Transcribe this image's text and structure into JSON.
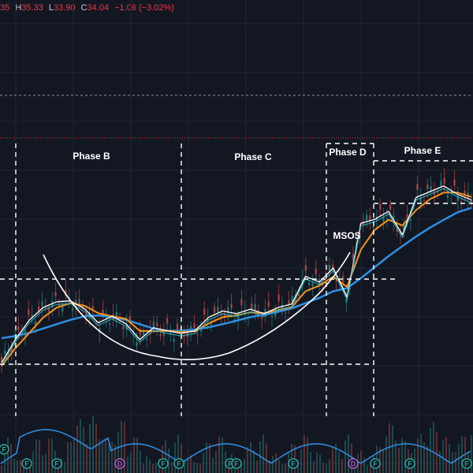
{
  "ohlc": {
    "open_partial": "35",
    "high_label": "H",
    "high": "35.33",
    "low_label": "L",
    "low": "33.90",
    "close_label": "C",
    "close": "34.04",
    "change": "−1.06 (−3.02%)"
  },
  "colors": {
    "background": "#131722",
    "grid": "#1f2433",
    "bull_candle": "#26a69a",
    "bear_candle": "#ef5350",
    "price_line": "#ffffff",
    "fast_ma": "#2bb3c0",
    "mid_ma": "#f7931a",
    "slow_ma": "#2f8fe6",
    "cup_curve": "#ffffff",
    "dashed_lines": "#ffffff",
    "top_dotted_line": "#e0e3eb",
    "red_dotted_line": "#e0303a",
    "volume_line": "#2f8fe6",
    "earnings_marker": "#26a69a",
    "dividend_marker": "#b05cc7"
  },
  "annotations": {
    "phase_b": "Phase B",
    "phase_c": "Phase C",
    "phase_d": "Phase D",
    "phase_e": "Phase E",
    "msos": "MSOS"
  },
  "markers": [
    {
      "label": "F",
      "type": "earnings"
    },
    {
      "label": "F",
      "type": "earnings"
    },
    {
      "label": "F",
      "type": "earnings"
    },
    {
      "label": "D",
      "type": "dividend"
    },
    {
      "label": "F",
      "type": "earnings"
    },
    {
      "label": "F",
      "type": "earnings"
    },
    {
      "label": "F",
      "type": "earnings"
    },
    {
      "label": "F",
      "type": "earnings"
    },
    {
      "label": "F",
      "type": "earnings"
    },
    {
      "label": "D",
      "type": "dividend"
    },
    {
      "label": "F",
      "type": "earnings"
    },
    {
      "label": "F",
      "type": "earnings"
    },
    {
      "label": "F",
      "type": "earnings"
    }
  ],
  "chart_data": {
    "type": "line",
    "series": [
      {
        "values": [
          15.2,
          20.5,
          24.9,
          27.8,
          29.1,
          29.3,
          27.5,
          24.3,
          25.8,
          24.1,
          20.5,
          23.2,
          22.5,
          21.9,
          22.5,
          25.6,
          27.0,
          26.4,
          27.4,
          26.4,
          27.8,
          28.6,
          34.9,
          33.6,
          36.8,
          30.2,
          47.0,
          47.9,
          49.7,
          44.4,
          52.9,
          54.2,
          55.5,
          53.6,
          52.3
        ]
      },
      {
        "values": [
          14.5,
          18.5,
          22.0,
          25.5,
          27.8,
          28.8,
          28.2,
          26.5,
          25.8,
          25.2,
          22.5,
          22.4,
          22.5,
          22.2,
          22.4,
          24.2,
          25.6,
          26.0,
          26.7,
          26.5,
          27.2,
          27.9,
          31.5,
          32.8,
          34.8,
          32.5,
          41.0,
          45.5,
          47.8,
          46.5,
          50.0,
          52.5,
          54.0,
          54.0,
          53.0
        ]
      },
      {
        "values": [
          20.8,
          21.3,
          22.0,
          23.0,
          24.0,
          25.0,
          25.8,
          26.0,
          25.6,
          25.0,
          24.0,
          23.0,
          22.5,
          22.5,
          22.8,
          23.3,
          24.0,
          24.8,
          25.6,
          26.2,
          26.8,
          27.6,
          28.8,
          30.0,
          31.5,
          32.2,
          34.5,
          37.0,
          39.5,
          41.8,
          44.0,
          46.0,
          47.8,
          49.5,
          50.5
        ]
      }
    ],
    "grid": true,
    "markers": [
      "F",
      "F",
      "F",
      "D",
      "F",
      "F",
      "F",
      "F",
      "F",
      "D",
      "F",
      "F",
      "F"
    ]
  }
}
